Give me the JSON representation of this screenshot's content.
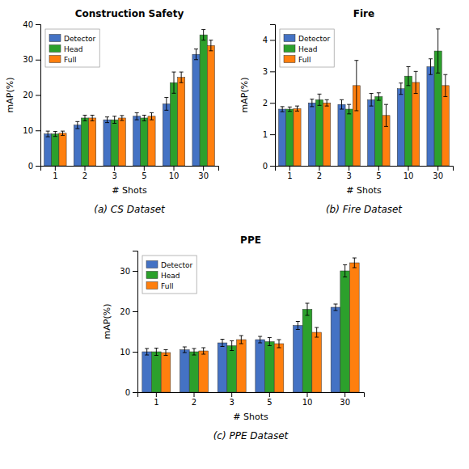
{
  "chart_data": [
    {
      "type": "bar",
      "title": "Construction Safety",
      "xlabel": "# Shots",
      "ylabel": "mAP(%)",
      "annotations": [
        "(a) CS Dataset"
      ],
      "categories": [
        "1",
        "2",
        "3",
        "5",
        "10",
        "30"
      ],
      "series": [
        {
          "name": "Detector",
          "color": "#4472C4",
          "values": [
            9.0,
            11.5,
            13.0,
            14.0,
            17.5,
            31.5
          ],
          "errors": [
            0.8,
            1.0,
            0.8,
            1.0,
            1.8,
            1.5
          ]
        },
        {
          "name": "Head",
          "color": "#2CA02C",
          "values": [
            9.0,
            13.5,
            13.0,
            13.5,
            23.5,
            37.0
          ],
          "errors": [
            0.7,
            0.8,
            1.0,
            0.8,
            3.0,
            1.5
          ]
        },
        {
          "name": "Full",
          "color": "#FF7F0E",
          "values": [
            9.2,
            13.5,
            13.5,
            14.0,
            25.0,
            34.0
          ],
          "errors": [
            0.6,
            0.8,
            0.7,
            1.0,
            1.5,
            1.5
          ]
        }
      ],
      "ylim": [
        0,
        40
      ],
      "yticks": [
        0,
        10,
        20,
        30,
        40
      ],
      "legend": "upper left"
    },
    {
      "type": "bar",
      "title": "Fire",
      "xlabel": "# Shots",
      "ylabel": "mAP(%)",
      "annotations": [
        "(b) Fire Dataset"
      ],
      "categories": [
        "1",
        "2",
        "3",
        "5",
        "10",
        "30"
      ],
      "series": [
        {
          "name": "Detector",
          "color": "#4472C4",
          "values": [
            1.8,
            2.0,
            1.95,
            2.1,
            2.45,
            3.15
          ],
          "errors": [
            0.08,
            0.12,
            0.15,
            0.2,
            0.18,
            0.25
          ]
        },
        {
          "name": "Head",
          "color": "#2CA02C",
          "values": [
            1.8,
            2.1,
            1.8,
            2.2,
            2.85,
            3.65
          ],
          "errors": [
            0.07,
            0.18,
            0.15,
            0.12,
            0.3,
            0.7
          ]
        },
        {
          "name": "Full",
          "color": "#FF7F0E",
          "values": [
            1.82,
            2.0,
            2.55,
            1.6,
            2.65,
            2.55
          ],
          "errors": [
            0.08,
            0.1,
            0.8,
            0.35,
            0.35,
            0.35
          ]
        }
      ],
      "ylim": [
        0,
        4.5
      ],
      "yticks": [
        0,
        1,
        2,
        3,
        4
      ],
      "legend": "upper left"
    },
    {
      "type": "bar",
      "title": "PPE",
      "xlabel": "# Shots",
      "ylabel": "mAP(%)",
      "annotations": [
        "(c) PPE Dataset"
      ],
      "categories": [
        "1",
        "2",
        "3",
        "5",
        "10",
        "30"
      ],
      "series": [
        {
          "name": "Detector",
          "color": "#4472C4",
          "values": [
            10.0,
            10.5,
            12.2,
            13.0,
            16.5,
            21.0
          ],
          "errors": [
            0.8,
            0.7,
            0.9,
            0.8,
            1.0,
            0.8
          ]
        },
        {
          "name": "Head",
          "color": "#2CA02C",
          "values": [
            10.0,
            10.0,
            11.5,
            12.5,
            20.5,
            30.0
          ],
          "errors": [
            0.9,
            0.8,
            1.2,
            1.0,
            1.5,
            1.5
          ]
        },
        {
          "name": "Full",
          "color": "#FF7F0E",
          "values": [
            9.8,
            10.2,
            13.0,
            12.0,
            14.8,
            32.0
          ],
          "errors": [
            0.7,
            0.8,
            1.0,
            1.0,
            1.2,
            1.2
          ]
        }
      ],
      "ylim": [
        0,
        35
      ],
      "yticks": [
        0,
        10,
        20,
        30
      ],
      "legend": "upper left"
    }
  ]
}
